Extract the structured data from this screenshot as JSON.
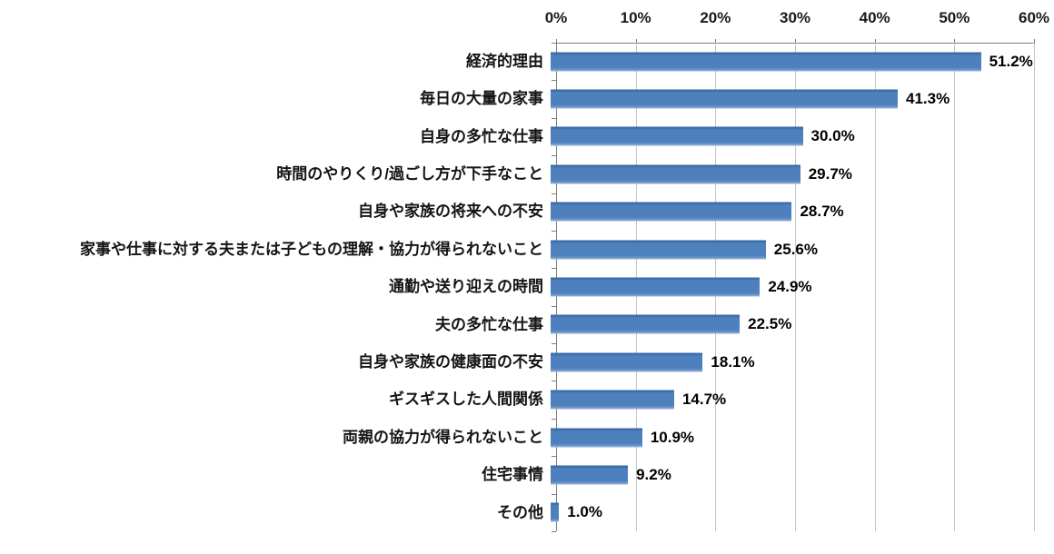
{
  "chart_data": {
    "type": "bar",
    "orientation": "horizontal",
    "title": "",
    "xlabel": "",
    "ylabel": "",
    "categories": [
      "経済的理由",
      "毎日の大量の家事",
      "自身の多忙な仕事",
      "時間のやりくり/過ごし方が下手なこと",
      "自身や家族の将来への不安",
      "家事や仕事に対する夫または子どもの理解・協力が得られないこと",
      "通勤や送り迎えの時間",
      "夫の多忙な仕事",
      "自身や家族の健康面の不安",
      "ギスギスした人間関係",
      "両親の協力が得られないこと",
      "住宅事情",
      "その他"
    ],
    "values": [
      51.2,
      41.3,
      30.0,
      29.7,
      28.7,
      25.6,
      24.9,
      22.5,
      18.1,
      14.7,
      10.9,
      9.2,
      1.0
    ],
    "value_labels": [
      "51.2%",
      "41.3%",
      "30.0%",
      "29.7%",
      "28.7%",
      "25.6%",
      "24.9%",
      "22.5%",
      "18.1%",
      "14.7%",
      "10.9%",
      "9.2%",
      "1.0%"
    ],
    "x_ticks": [
      "0%",
      "10%",
      "20%",
      "30%",
      "40%",
      "50%",
      "60%"
    ],
    "xlim": [
      0,
      60
    ],
    "grid": true,
    "legend": false,
    "colors": {
      "bar": "#4d80bd",
      "gridline": "#c6c6c6",
      "axis": "#7f7f7f",
      "text": "#141414",
      "background": "#ffffff"
    }
  }
}
